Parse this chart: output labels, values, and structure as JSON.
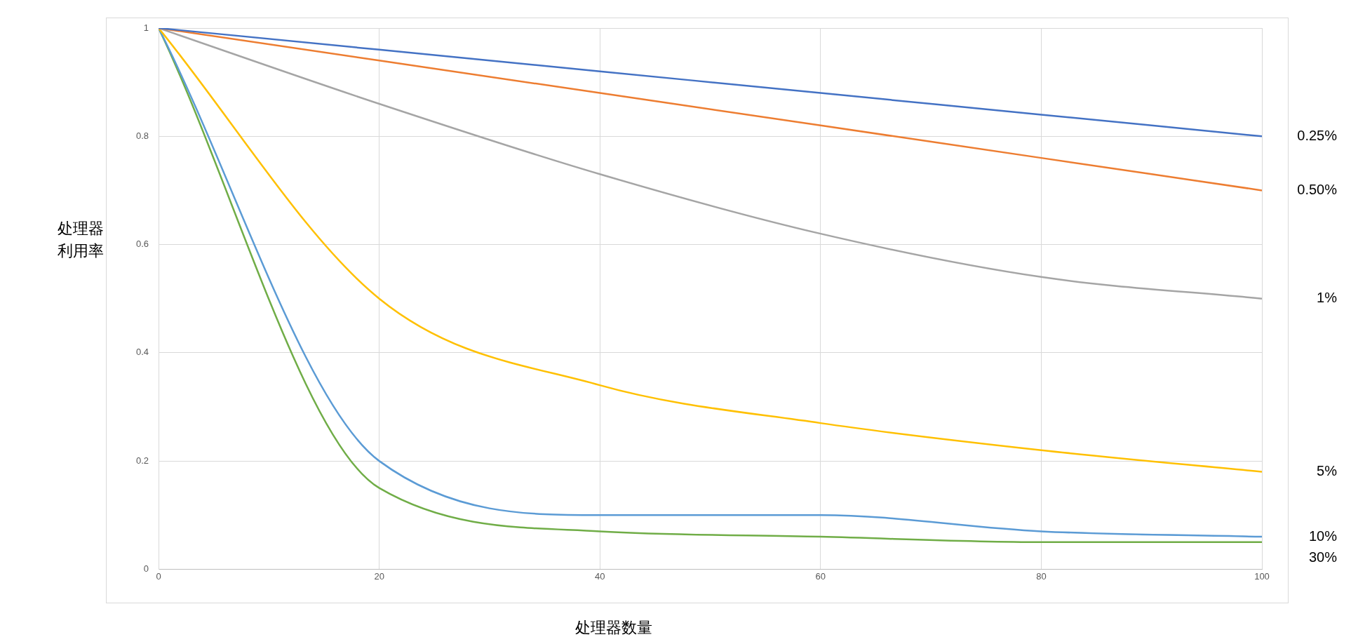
{
  "chart_data": {
    "type": "line",
    "xlabel": "处理器数量",
    "ylabel": "处理器利用率",
    "x": [
      0,
      20,
      40,
      60,
      80,
      100
    ],
    "xlim": [
      0,
      100
    ],
    "xticks": [
      0,
      20,
      40,
      60,
      80,
      100
    ],
    "ylim": [
      0,
      1
    ],
    "yticks": [
      0,
      0.2,
      0.4,
      0.6,
      0.8,
      1
    ],
    "grid": true,
    "legend": false,
    "marker": "none",
    "line_style": "solid",
    "series": [
      {
        "name": "0.25%",
        "color": "#4472c4",
        "values": [
          1,
          0.96,
          0.92,
          0.88,
          0.84,
          0.8
        ]
      },
      {
        "name": "0.50%",
        "color": "#ed7d31",
        "values": [
          1,
          0.94,
          0.88,
          0.82,
          0.76,
          0.7
        ]
      },
      {
        "name": "1%",
        "color": "#a5a5a5",
        "values": [
          1,
          0.86,
          0.73,
          0.62,
          0.54,
          0.5
        ]
      },
      {
        "name": "5%",
        "color": "#ffc000",
        "values": [
          1,
          0.5,
          0.34,
          0.27,
          0.22,
          0.18
        ]
      },
      {
        "name": "10%",
        "color": "#5b9bd5",
        "values": [
          1,
          0.2,
          0.1,
          0.1,
          0.07,
          0.06
        ]
      },
      {
        "name": "30%",
        "color": "#70ad47",
        "values": [
          1,
          0.15,
          0.07,
          0.06,
          0.05,
          0.05
        ]
      }
    ]
  }
}
